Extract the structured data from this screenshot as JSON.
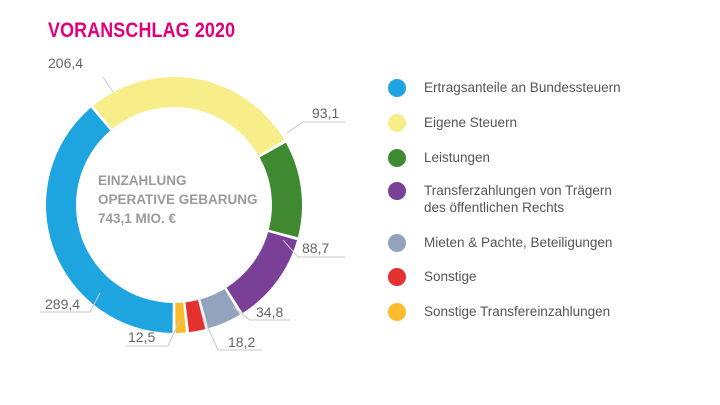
{
  "chart_data": {
    "type": "pie",
    "title": "VORANSCHLAG 2020",
    "center_text": [
      "EINZAHLUNG",
      "OPERATIVE GEBARUNG",
      "743,1 MIO. €"
    ],
    "categories": [
      "Ertragsanteile an Bundessteuern",
      "Eigene Steuern",
      "Leistungen",
      "Transferzahlungen von Trägern des öffentlichen Rechts",
      "Mieten & Pachte, Beteiligungen",
      "Sonstige",
      "Sonstige Transfereinzahlungen"
    ],
    "values": [
      289.4,
      206.4,
      93.1,
      88.7,
      34.8,
      18.2,
      12.5
    ],
    "labels": [
      "289,4",
      "206,4",
      "93,1",
      "88,7",
      "34,8",
      "18,2",
      "12,5"
    ],
    "colors": [
      "#1ea5e0",
      "#f7ee8a",
      "#3f8a30",
      "#7a3f96",
      "#94a3bd",
      "#e3312f",
      "#fbbc2c"
    ],
    "legend_position": "right"
  }
}
